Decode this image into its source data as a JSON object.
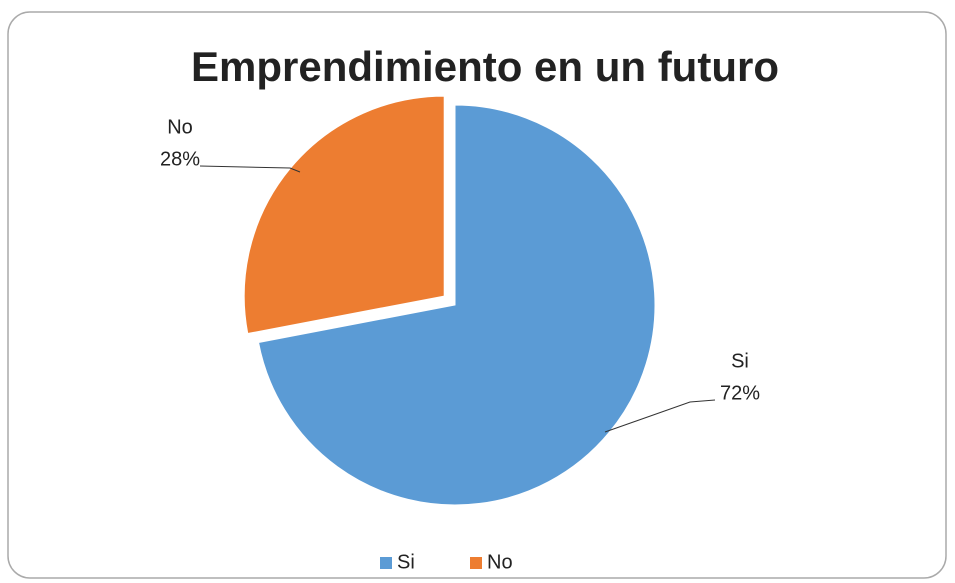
{
  "chart_data": {
    "type": "pie",
    "title": "Emprendimiento en un futuro",
    "categories": [
      "Si",
      "No"
    ],
    "values": [
      72,
      28
    ],
    "value_labels": [
      "72%",
      "28%"
    ],
    "colors": [
      "#5b9bd5",
      "#ed7d31"
    ],
    "legend": "bottom"
  }
}
